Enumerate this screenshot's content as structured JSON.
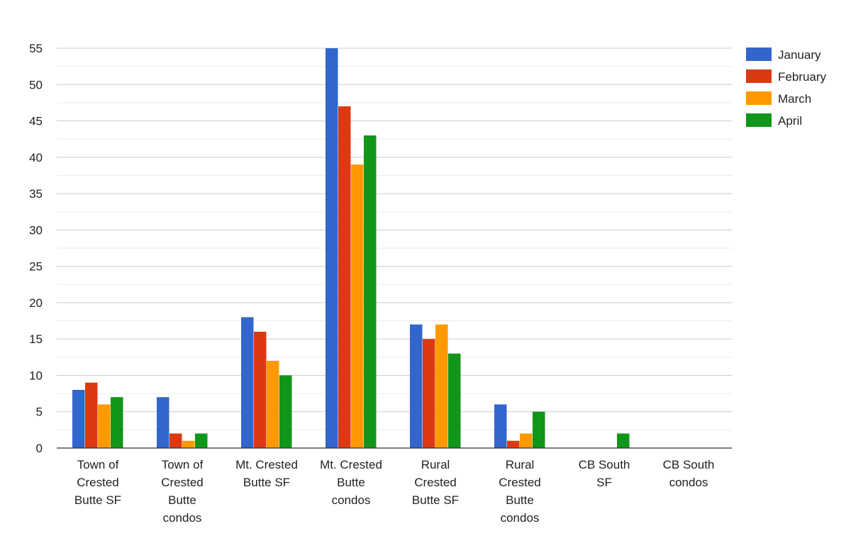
{
  "chart_data": {
    "type": "bar",
    "title": "",
    "xlabel": "",
    "ylabel": "",
    "ylim": [
      0,
      55
    ],
    "yticks": [
      0,
      5,
      10,
      15,
      20,
      25,
      30,
      35,
      40,
      45,
      50,
      55
    ],
    "grid": true,
    "legend_position": "right",
    "categories": [
      [
        "Town of",
        "Crested",
        "Butte SF"
      ],
      [
        "Town of",
        "Crested",
        "Butte",
        "condos"
      ],
      [
        "Mt. Crested",
        "Butte SF"
      ],
      [
        "Mt. Crested",
        "Butte",
        "condos"
      ],
      [
        "Rural",
        "Crested",
        "Butte SF"
      ],
      [
        "Rural",
        "Crested",
        "Butte",
        "condos"
      ],
      [
        "CB South",
        "SF"
      ],
      [
        "CB South",
        "condos"
      ]
    ],
    "series": [
      {
        "name": "January",
        "color": "#3366cc",
        "values": [
          8,
          7,
          18,
          55,
          17,
          6,
          0,
          0
        ]
      },
      {
        "name": "February",
        "color": "#dc3912",
        "values": [
          9,
          2,
          16,
          47,
          15,
          1,
          0,
          0
        ]
      },
      {
        "name": "March",
        "color": "#ff9900",
        "values": [
          6,
          1,
          12,
          39,
          17,
          2,
          0,
          0
        ]
      },
      {
        "name": "April",
        "color": "#109618",
        "values": [
          7,
          2,
          10,
          43,
          13,
          5,
          2,
          0
        ]
      }
    ]
  }
}
